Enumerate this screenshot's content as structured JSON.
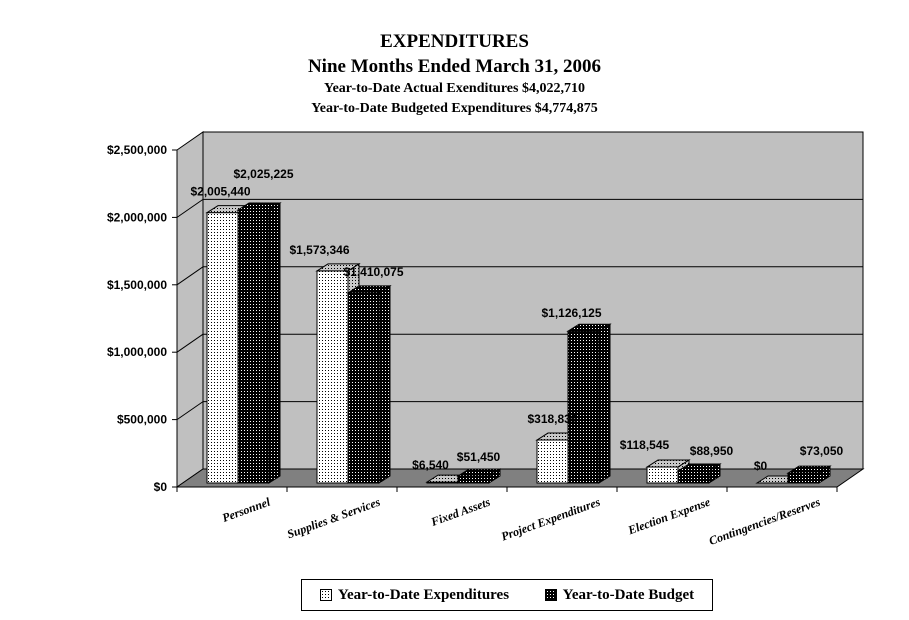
{
  "chart_data": {
    "type": "bar",
    "title": "EXPENDITURES",
    "subtitle": "Nine Months Ended March 31, 2006",
    "subtitle2": "Year-to-Date Actual Exenditures $4,022,710",
    "subtitle3": "Year-to-Date Budgeted Expenditures $4,774,875",
    "categories": [
      "Personnel",
      "Supplies & Services",
      "Fixed Assets",
      "Project Expenditures",
      "Election Expense",
      "Contingencies/Reserves"
    ],
    "series": [
      {
        "name": "Year-to-Date Expenditures",
        "values": [
          2005440,
          1573346,
          6540,
          318839,
          118545,
          0
        ],
        "labels": [
          "$2,005,440",
          "$1,573,346",
          "$6,540",
          "$318,839",
          "$118,545",
          "$0"
        ]
      },
      {
        "name": "Year-to-Date Budget",
        "values": [
          2025225,
          1410075,
          51450,
          1126125,
          88950,
          73050
        ],
        "labels": [
          "$2,025,225",
          "$1,410,075",
          "$51,450",
          "$1,126,125",
          "$88,950",
          "$73,050"
        ]
      }
    ],
    "yticks": [
      "$0",
      "$500,000",
      "$1,000,000",
      "$1,500,000",
      "$2,000,000",
      "$2,500,000"
    ],
    "ylim": [
      0,
      2500000
    ],
    "xlabel": "",
    "ylabel": "",
    "grid": true,
    "legend_position": "bottom",
    "colors": {
      "wall": "#c0c0c0",
      "floor": "#808080",
      "series1": "#ffffff",
      "series2": "#000000"
    }
  }
}
